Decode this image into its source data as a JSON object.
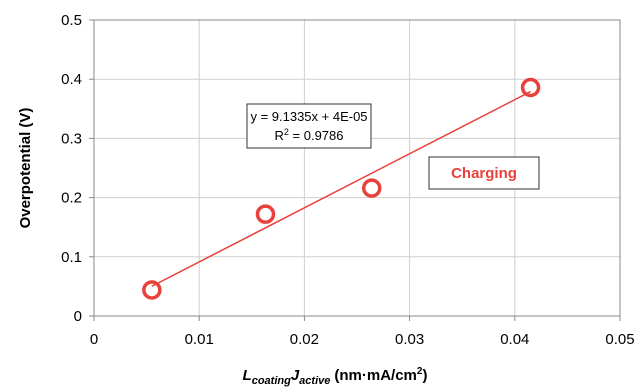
{
  "chart_data": {
    "type": "scatter",
    "x_ticks": [
      "0",
      "0.01",
      "0.02",
      "0.03",
      "0.04",
      "0.05"
    ],
    "y_ticks": [
      "0",
      "0.1",
      "0.2",
      "0.3",
      "0.4",
      "0.5"
    ],
    "xlim": [
      0,
      0.05
    ],
    "ylim": [
      0,
      0.5
    ],
    "grid": true,
    "ylabel": "Overpotential (V)",
    "xlabel": {
      "L": "L",
      "coating": "coating",
      "J": "J",
      "active": "active",
      "units": "(nm·mA/cm",
      "sup": "2",
      "close": ")"
    },
    "series": [
      {
        "x": [
          0.0055,
          0.0163,
          0.0264,
          0.0415
        ],
        "y": [
          0.044,
          0.172,
          0.216,
          0.386
        ],
        "color": "#e8403a"
      }
    ],
    "trendline": {
      "slope": 9.1335,
      "intercept": 4e-05,
      "x_range": [
        0.0055,
        0.0415
      ],
      "color": "#e8403a",
      "equation": "y = 9.1335x + 4E-05",
      "r2_prefix": "R",
      "r2_sup": "2",
      "r2_value": " = 0.9786"
    },
    "annotation": {
      "text": "Charging",
      "color": "#e8403a"
    }
  }
}
